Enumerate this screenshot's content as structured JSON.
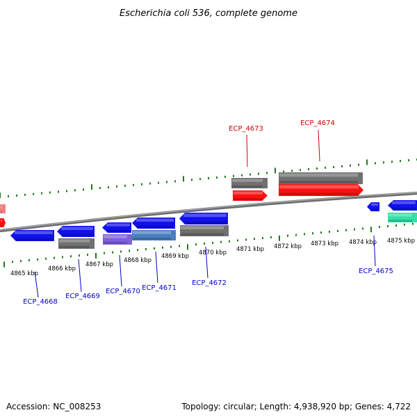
{
  "title": "Escherichia coli 536, complete genome",
  "footer": {
    "accession": "Accession: NC_008253",
    "summary": "Topology: circular; Length: 4,938,920 bp; Genes: 4,722"
  },
  "colors": {
    "forward_cds": "#ff1010",
    "forward_cds_faded": "#f08080",
    "reverse_cds": "#1010ee",
    "gray_feature": "#707070",
    "purple_feature": "#7e60d8",
    "steelblue_feature": "#4a7fc0",
    "green_feature": "#33e0a8",
    "backbone": "#888888",
    "tick": "#1c7a1c",
    "label_reverse": "#0000cc",
    "label_forward": "#cc0000"
  },
  "ticks": [
    "4865 kbp",
    "4866 kbp",
    "4867 kbp",
    "4868 kbp",
    "4869 kbp",
    "4870 kbp",
    "4871 kbp",
    "4872 kbp",
    "4873 kbp",
    "4874 kbp",
    "4875 kbp"
  ],
  "genes": [
    {
      "label": "ECP_4668",
      "strand": "reverse"
    },
    {
      "label": "ECP_4669",
      "strand": "reverse"
    },
    {
      "label": "ECP_4670",
      "strand": "reverse"
    },
    {
      "label": "ECP_4671",
      "strand": "reverse"
    },
    {
      "label": "ECP_4672",
      "strand": "reverse"
    },
    {
      "label": "ECP_4673",
      "strand": "forward"
    },
    {
      "label": "ECP_4674",
      "strand": "forward"
    },
    {
      "label": "ECP_4675",
      "strand": "reverse"
    }
  ]
}
